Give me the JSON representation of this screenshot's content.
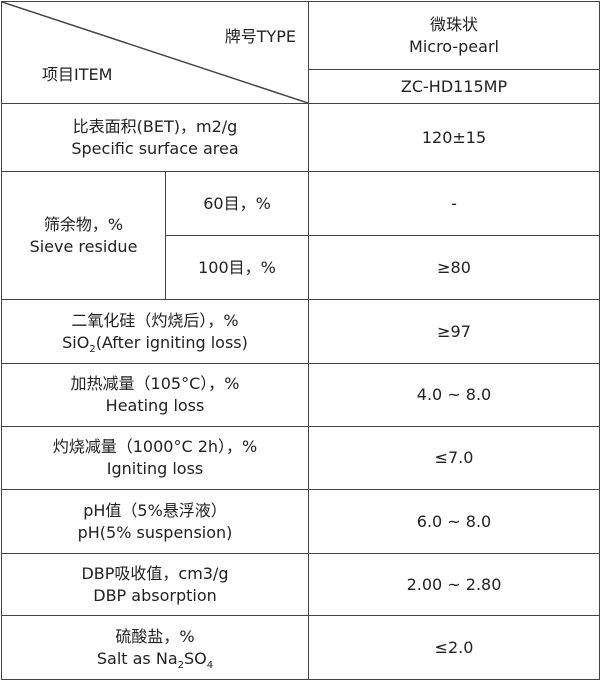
{
  "header": {
    "type": "牌号TYPE",
    "item": "项目ITEM",
    "product_cn": "微珠状",
    "product_en": "Micro-pearl",
    "code": "ZC-HD115MP"
  },
  "rows": [
    {
      "label": [
        "比表面积(BET)，m2/g",
        "Specific surface area"
      ],
      "value": "120±15"
    },
    {
      "label": [
        "筛余物，%",
        "Sieve residue"
      ],
      "sub": [
        {
          "label": "60目，%",
          "value": "-"
        },
        {
          "label": "100目，%",
          "value": "≥80"
        }
      ]
    },
    {
      "label": [
        "二氧化硅（灼烧后），%",
        [
          "SiO",
          "2",
          "(After igniting loss)"
        ]
      ],
      "value": "≥97"
    },
    {
      "label": [
        "加热减量（105°C），%",
        "Heating loss"
      ],
      "value": "4.0 ~ 8.0"
    },
    {
      "label": [
        "灼烧减量（1000°C 2h），%",
        "Igniting loss"
      ],
      "value": "≤7.0"
    },
    {
      "label": [
        "pH值（5%悬浮液）",
        "pH(5% suspension)"
      ],
      "value": "6.0 ~ 8.0"
    },
    {
      "label": [
        "DBP吸收值，cm3/g",
        "DBP absorption"
      ],
      "value": "2.00 ~ 2.80"
    },
    {
      "label": [
        "硫酸盐，%",
        [
          "Salt as Na",
          "2",
          "SO",
          "4"
        ]
      ],
      "value": "≤2.0"
    }
  ]
}
